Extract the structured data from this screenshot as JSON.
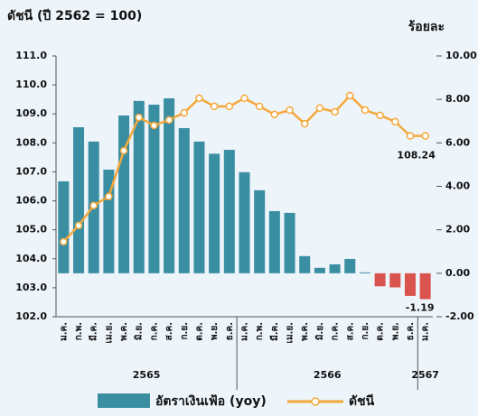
{
  "chart_data": {
    "type": "bar_line",
    "title": "ดัชนี (ปี 2562 = 100)",
    "y2_title": "ร้อยละ",
    "categories": [
      "ม.ค.",
      "ก.พ.",
      "มี.ค.",
      "เม.ย.",
      "พ.ค.",
      "มิ.ย.",
      "ก.ค.",
      "ส.ค.",
      "ก.ย.",
      "ต.ค.",
      "พ.ย.",
      "ธ.ค.",
      "ม.ค.",
      "ก.พ.",
      "มี.ค.",
      "เม.ย.",
      "พ.ค.",
      "มิ.ย.",
      "ก.ค.",
      "ส.ค.",
      "ก.ย.",
      "ต.ค.",
      "พ.ย.",
      "ธ.ค.",
      "ม.ค."
    ],
    "x_groups": [
      {
        "label": "2565",
        "count": 12
      },
      {
        "label": "2566",
        "count": 12
      },
      {
        "label": "2567",
        "count": 1
      }
    ],
    "series": [
      {
        "name": "อัตราเงินเฟ้อ (yoy)",
        "type": "bar",
        "axis": "y2",
        "color": "#3a8ea2",
        "negative_color": "#d9534f",
        "values": [
          4.23,
          6.72,
          6.06,
          4.77,
          7.26,
          7.93,
          7.76,
          8.05,
          6.68,
          6.06,
          5.5,
          5.68,
          4.65,
          3.82,
          2.86,
          2.78,
          0.79,
          0.25,
          0.41,
          0.66,
          0.04,
          -0.6,
          -0.65,
          -1.04,
          -1.19
        ]
      },
      {
        "name": "ดัชนี",
        "type": "line",
        "axis": "y",
        "color": "#f4a83a",
        "values": [
          104.59,
          105.15,
          105.84,
          106.15,
          107.73,
          108.88,
          108.6,
          108.79,
          109.04,
          109.54,
          109.26,
          109.26,
          109.54,
          109.26,
          108.98,
          109.13,
          108.66,
          109.2,
          109.07,
          109.63,
          109.13,
          108.95,
          108.73,
          108.24,
          108.24
        ]
      }
    ],
    "ylim": [
      102,
      111
    ],
    "yticks": [
      {
        "value": 102,
        "label": "102.0"
      },
      {
        "value": 103,
        "label": "103.0"
      },
      {
        "value": 104,
        "label": "104.0"
      },
      {
        "value": 105,
        "label": "105.0"
      },
      {
        "value": 106,
        "label": "106.0"
      },
      {
        "value": 107,
        "label": "107.0"
      },
      {
        "value": 108,
        "label": "108.0"
      },
      {
        "value": 109,
        "label": "109.0"
      },
      {
        "value": 110,
        "label": "110.0"
      },
      {
        "value": 111,
        "label": "111.0"
      }
    ],
    "y2lim": [
      -2,
      10
    ],
    "y2ticks": [
      {
        "value": -2,
        "label": "-2.00"
      },
      {
        "value": 0,
        "label": "0.00"
      },
      {
        "value": 2,
        "label": "2.00"
      },
      {
        "value": 4,
        "label": "4.00"
      },
      {
        "value": 6,
        "label": "6.00"
      },
      {
        "value": 8,
        "label": "8.00"
      },
      {
        "value": 10,
        "label": "10.00"
      }
    ]
  }
}
